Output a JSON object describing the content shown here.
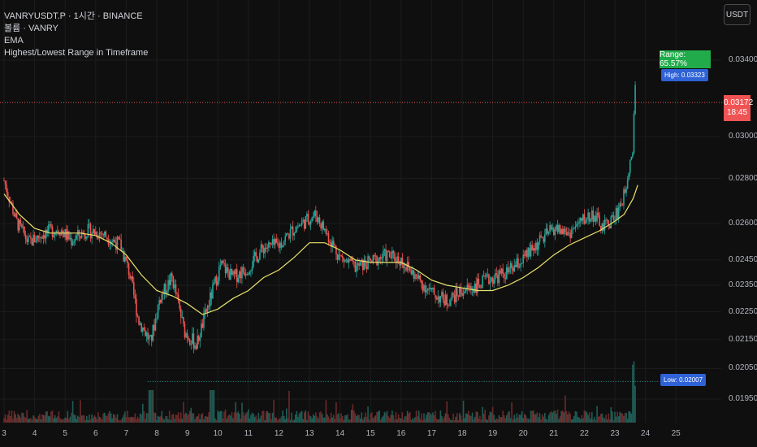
{
  "header": {
    "symbol_line": "VANRYUSDT.P · 1시간 · BINANCE",
    "volume_line": "볼륨 · VANRY",
    "ema_line": "EMA",
    "range_indicator_line": "Highest/Lowest Range in Timeframe"
  },
  "currency_button": "USDT",
  "price_axis": {
    "ticks": [
      "0.03400",
      "0.03000",
      "0.02800",
      "0.02600",
      "0.02450",
      "0.02350",
      "0.02250",
      "0.02150",
      "0.02050",
      "0.01950"
    ],
    "tick_values": [
      0.034,
      0.03,
      0.028,
      0.026,
      0.0245,
      0.0235,
      0.0225,
      0.0215,
      0.0205,
      0.0195
    ]
  },
  "time_axis": {
    "labels": [
      "3",
      "4",
      "5",
      "6",
      "7",
      "8",
      "9",
      "10",
      "11",
      "12",
      "13",
      "14",
      "15",
      "16",
      "17",
      "18",
      "19",
      "20",
      "21",
      "22",
      "23",
      "24",
      "25"
    ]
  },
  "current_price": {
    "price": "0.03172",
    "countdown": "18:45"
  },
  "range_label": "Range: 65.57%",
  "high_label": "High: 0.03323",
  "low_label": "Low: 0.02007",
  "colors": {
    "background": "#0f0f0f",
    "up": "#26a69a",
    "down": "#ef5350",
    "ema": "#e9e26a",
    "range_green": "#22ab4a",
    "marker_blue": "#2e62d6",
    "price_red": "#f05353"
  },
  "chart_data": {
    "type": "candlestick",
    "title": "VANRYUSDT.P · 1시간 · BINANCE",
    "x_labels": [
      "3",
      "4",
      "5",
      "6",
      "7",
      "8",
      "9",
      "10",
      "11",
      "12",
      "13",
      "14",
      "15",
      "16",
      "17",
      "18",
      "19",
      "20",
      "21",
      "22",
      "23",
      "24",
      "25"
    ],
    "price_path": [
      [
        3.0,
        0.0279
      ],
      [
        3.4,
        0.0261
      ],
      [
        3.8,
        0.0252
      ],
      [
        4.3,
        0.0256
      ],
      [
        4.8,
        0.0258
      ],
      [
        5.2,
        0.0253
      ],
      [
        5.7,
        0.0257
      ],
      [
        6.2,
        0.0256
      ],
      [
        6.8,
        0.0251
      ],
      [
        7.1,
        0.024
      ],
      [
        7.4,
        0.0222
      ],
      [
        7.8,
        0.0214
      ],
      [
        8.1,
        0.023
      ],
      [
        8.5,
        0.0238
      ],
      [
        8.9,
        0.0218
      ],
      [
        9.3,
        0.0213
      ],
      [
        9.7,
        0.0228
      ],
      [
        10.1,
        0.0243
      ],
      [
        10.5,
        0.0238
      ],
      [
        11.0,
        0.0242
      ],
      [
        11.5,
        0.025
      ],
      [
        12.0,
        0.0251
      ],
      [
        12.5,
        0.0258
      ],
      [
        13.2,
        0.0264
      ],
      [
        13.6,
        0.0255
      ],
      [
        14.0,
        0.0246
      ],
      [
        14.5,
        0.0242
      ],
      [
        15.0,
        0.0244
      ],
      [
        15.5,
        0.0247
      ],
      [
        16.0,
        0.0245
      ],
      [
        16.5,
        0.0238
      ],
      [
        17.0,
        0.0232
      ],
      [
        17.5,
        0.0229
      ],
      [
        18.0,
        0.0233
      ],
      [
        18.5,
        0.0235
      ],
      [
        19.0,
        0.0238
      ],
      [
        19.5,
        0.024
      ],
      [
        20.0,
        0.0245
      ],
      [
        20.5,
        0.0252
      ],
      [
        21.0,
        0.0258
      ],
      [
        21.5,
        0.0256
      ],
      [
        22.0,
        0.0262
      ],
      [
        22.3,
        0.0264
      ],
      [
        22.6,
        0.0258
      ],
      [
        23.0,
        0.0263
      ],
      [
        23.3,
        0.0272
      ],
      [
        23.5,
        0.0289
      ],
      [
        23.6,
        0.0295
      ],
      [
        23.65,
        0.0332
      ],
      [
        23.7,
        0.0317
      ]
    ],
    "ema_path": [
      [
        3.0,
        0.0273
      ],
      [
        3.5,
        0.0264
      ],
      [
        4.0,
        0.0258
      ],
      [
        4.5,
        0.0256
      ],
      [
        5.0,
        0.0256
      ],
      [
        5.5,
        0.0256
      ],
      [
        6.0,
        0.0255
      ],
      [
        6.5,
        0.0252
      ],
      [
        7.0,
        0.0247
      ],
      [
        7.5,
        0.0239
      ],
      [
        8.0,
        0.0233
      ],
      [
        8.5,
        0.0231
      ],
      [
        9.0,
        0.0228
      ],
      [
        9.5,
        0.0224
      ],
      [
        10.0,
        0.0226
      ],
      [
        10.5,
        0.023
      ],
      [
        11.0,
        0.0233
      ],
      [
        11.5,
        0.0238
      ],
      [
        12.0,
        0.0241
      ],
      [
        12.5,
        0.0246
      ],
      [
        13.0,
        0.0252
      ],
      [
        13.5,
        0.0252
      ],
      [
        14.0,
        0.0249
      ],
      [
        14.5,
        0.0245
      ],
      [
        15.0,
        0.0244
      ],
      [
        15.5,
        0.0244
      ],
      [
        16.0,
        0.0244
      ],
      [
        16.5,
        0.0241
      ],
      [
        17.0,
        0.0237
      ],
      [
        17.5,
        0.0235
      ],
      [
        18.0,
        0.0234
      ],
      [
        18.5,
        0.0233
      ],
      [
        19.0,
        0.0233
      ],
      [
        19.5,
        0.0235
      ],
      [
        20.0,
        0.0238
      ],
      [
        20.5,
        0.0242
      ],
      [
        21.0,
        0.0247
      ],
      [
        21.5,
        0.0251
      ],
      [
        22.0,
        0.0254
      ],
      [
        22.5,
        0.0257
      ],
      [
        23.0,
        0.0261
      ],
      [
        23.3,
        0.0264
      ],
      [
        23.6,
        0.0271
      ],
      [
        23.75,
        0.0277
      ]
    ],
    "high": 0.03323,
    "low": 0.02007,
    "range_percent": 65.57,
    "current_price": 0.03172,
    "y_scale": "log",
    "grid": true
  }
}
